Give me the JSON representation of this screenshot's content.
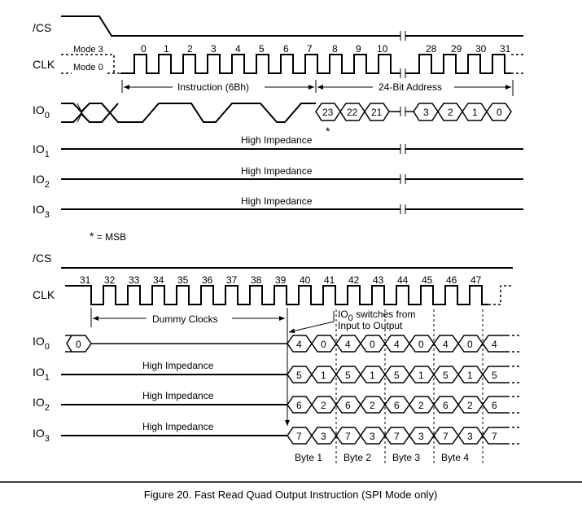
{
  "top": {
    "signals": {
      "cs": "/CS",
      "clk": "CLK",
      "io0": "IO",
      "io1": "IO",
      "io2": "IO",
      "io3": "IO",
      "sub0": "0",
      "sub1": "1",
      "sub2": "2",
      "sub3": "3"
    },
    "mode3": "Mode 3",
    "mode0": "Mode 0",
    "clk_numbers": [
      "0",
      "1",
      "2",
      "3",
      "4",
      "5",
      "6",
      "7",
      "8",
      "9",
      "10",
      "28",
      "29",
      "30",
      "31"
    ],
    "instruction_label": "Instruction (6Bh)",
    "address_label": "24-Bit Address",
    "addr_bits": [
      "23",
      "22",
      "21",
      "3",
      "2",
      "1",
      "0"
    ],
    "msb_star": "*",
    "high_impedance": "High Impedance"
  },
  "msb_note": {
    "star": "*",
    "text": " = MSB"
  },
  "bottom": {
    "signals": {
      "cs": "/CS",
      "clk": "CLK",
      "io0": "IO",
      "io1": "IO",
      "io2": "IO",
      "io3": "IO",
      "sub0": "0",
      "sub1": "1",
      "sub2": "2",
      "sub3": "3"
    },
    "clk_numbers": [
      "31",
      "32",
      "33",
      "34",
      "35",
      "36",
      "37",
      "38",
      "39",
      "40",
      "41",
      "42",
      "43",
      "44",
      "45",
      "46",
      "47"
    ],
    "dummy_label": "Dummy Clocks",
    "switch_line1_prefix": "IO",
    "switch_line1_sub": "0",
    "switch_line1_suffix": " switches from",
    "switch_line2": "Input to Output",
    "io0_start": "0",
    "high_impedance": "High Impedance",
    "io0_bits": [
      "4",
      "0",
      "4",
      "0",
      "4",
      "0",
      "4",
      "0",
      "4"
    ],
    "io1_bits": [
      "5",
      "1",
      "5",
      "1",
      "5",
      "1",
      "5",
      "1",
      "5"
    ],
    "io2_bits": [
      "6",
      "2",
      "6",
      "2",
      "6",
      "2",
      "6",
      "2",
      "6"
    ],
    "io3_bits": [
      "7",
      "3",
      "7",
      "3",
      "7",
      "3",
      "7",
      "3",
      "7"
    ],
    "bytes": [
      "Byte 1",
      "Byte 2",
      "Byte 3",
      "Byte 4"
    ]
  },
  "caption": "Figure 20. Fast Read Quad Output Instruction (SPI Mode only)"
}
